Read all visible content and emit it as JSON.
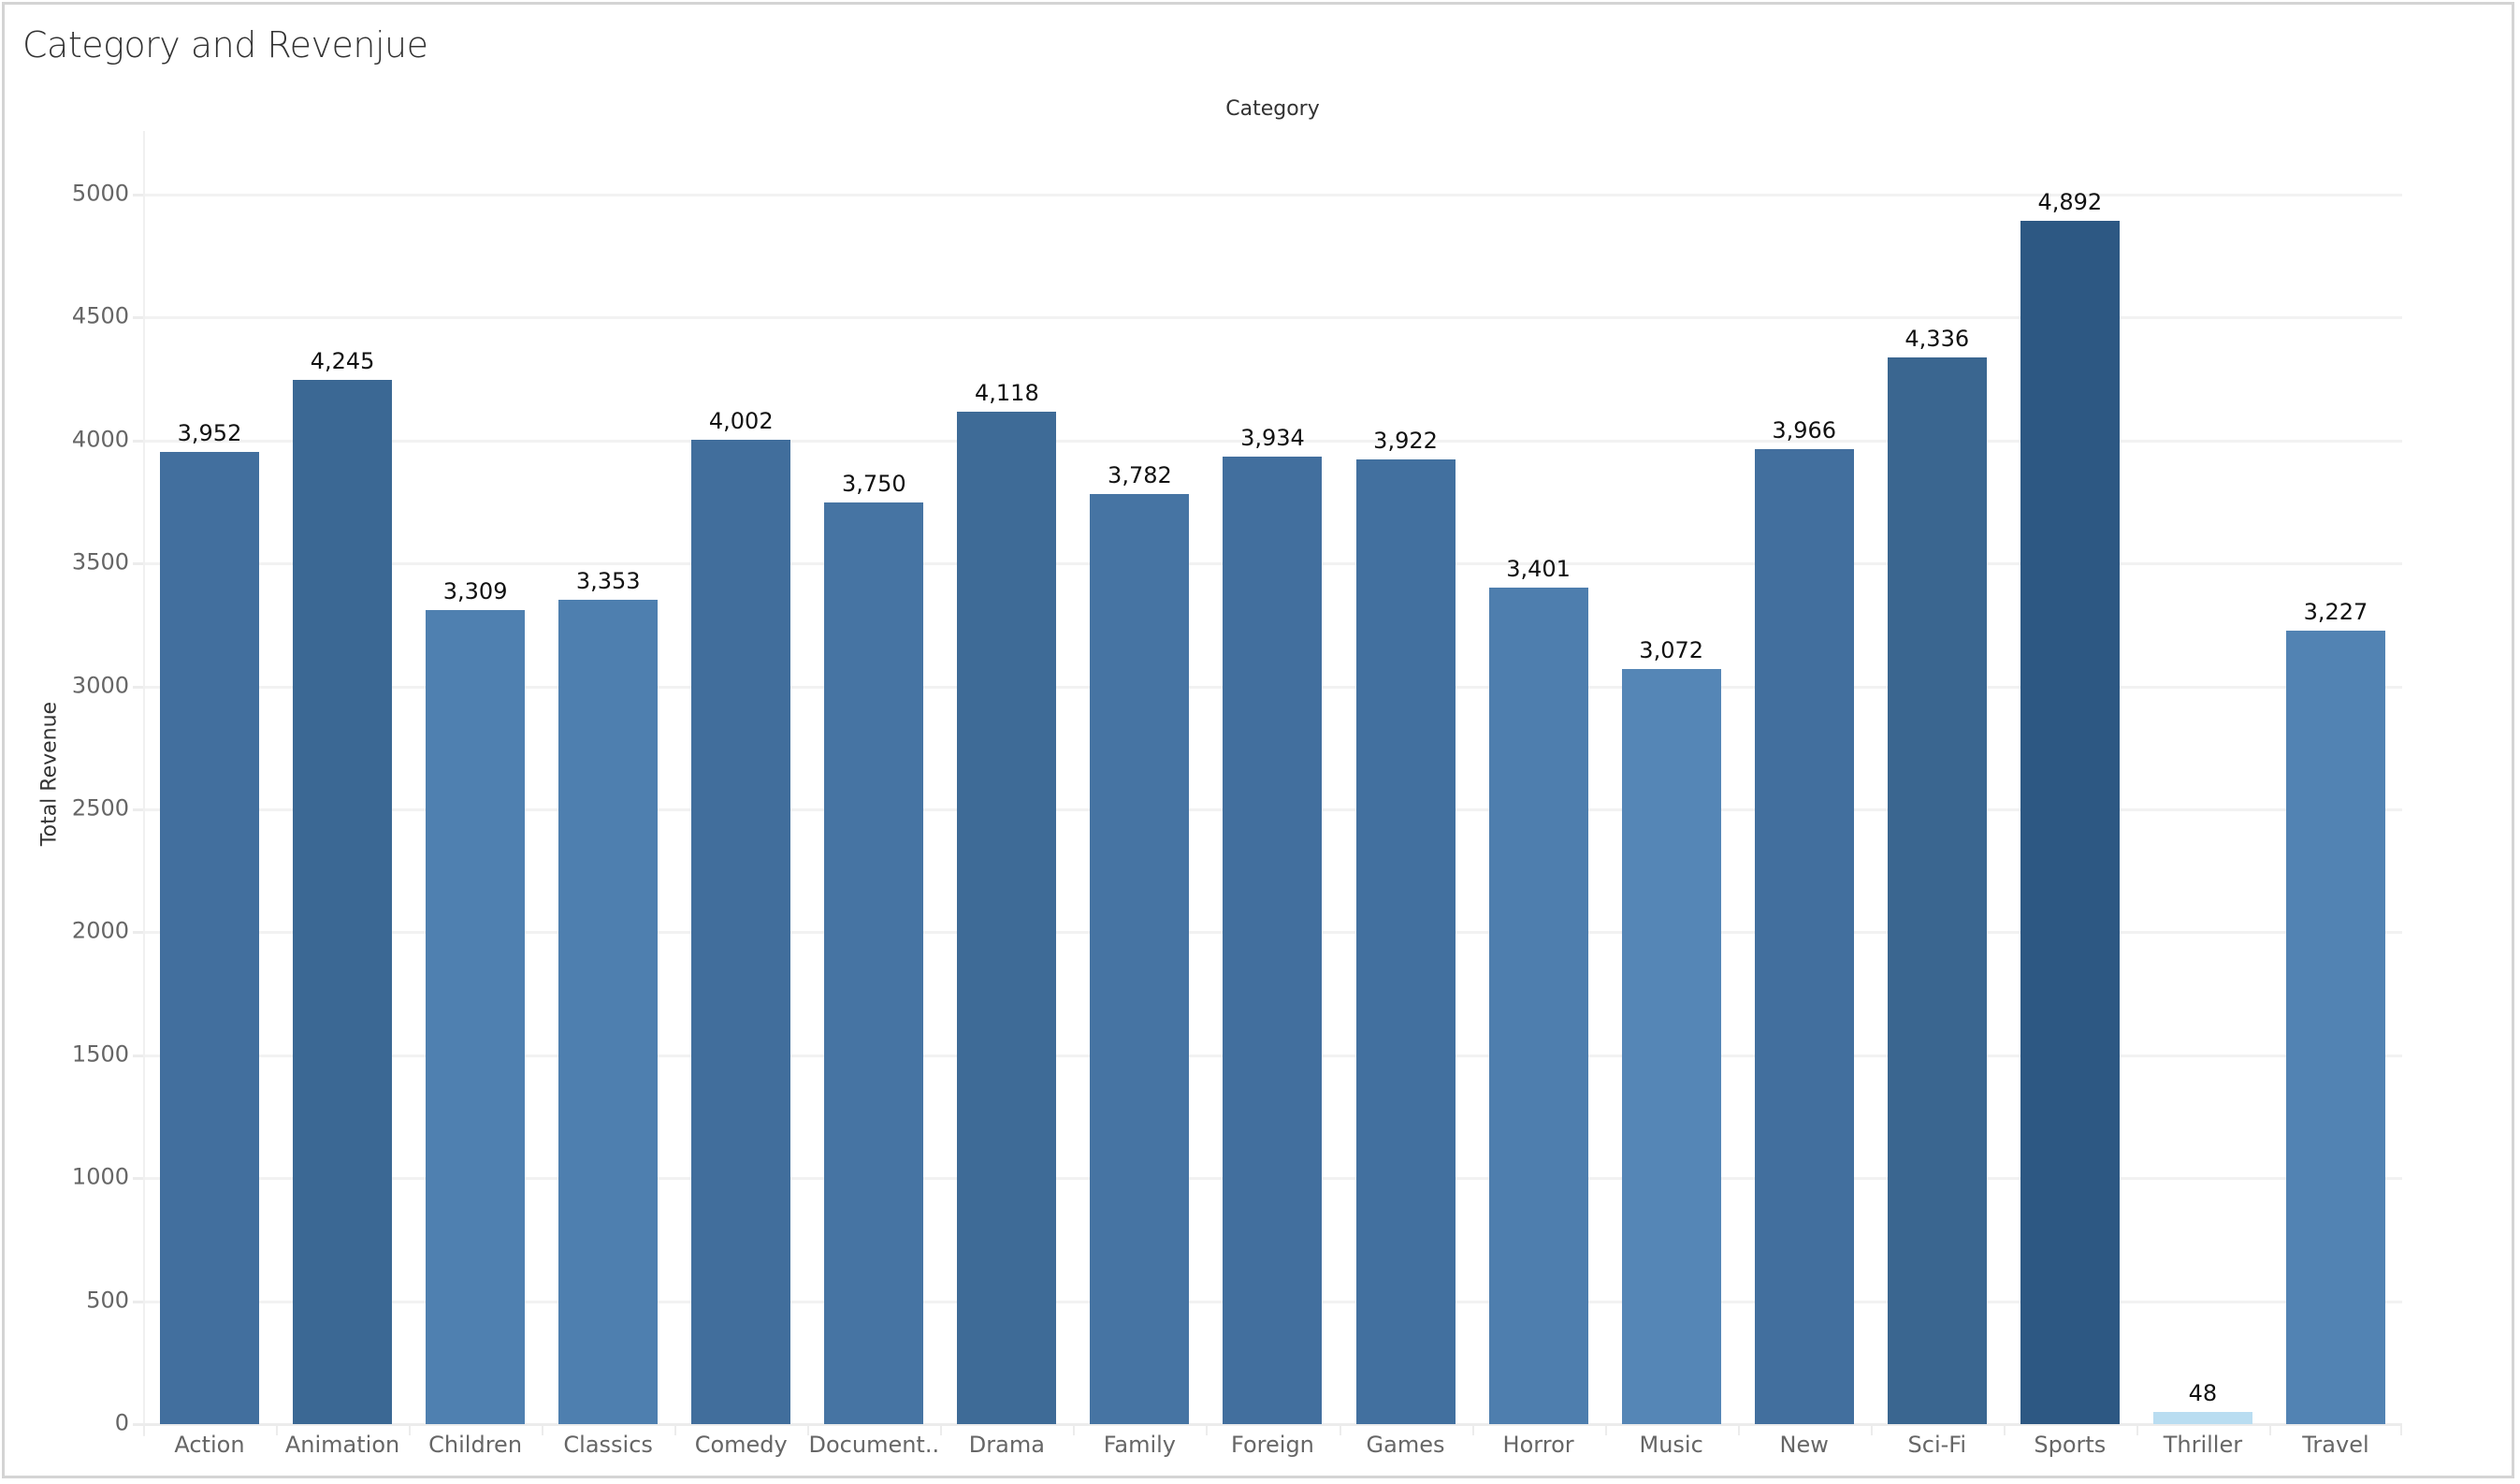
{
  "title": "Category and Revenjue",
  "column_header": "Category",
  "y_axis_title": "Total Revenue",
  "colors": {
    "frame_border": "#d4d4d4",
    "gridline": "#f2f2f2",
    "max_bar": "#2d5883",
    "min_bar": "#b9ddf1"
  },
  "y_ticks": [
    "0",
    "500",
    "1000",
    "1500",
    "2000",
    "2500",
    "3000",
    "3500",
    "4000",
    "4500",
    "5000"
  ],
  "bars": [
    {
      "category": "Action",
      "label": "Action",
      "value": 3952,
      "value_label": "3,952",
      "color": "#426f9e"
    },
    {
      "category": "Animation",
      "label": "Animation",
      "value": 4245,
      "value_label": "4,245",
      "color": "#3b6894"
    },
    {
      "category": "Children",
      "label": "Children",
      "value": 3309,
      "value_label": "3,309",
      "color": "#4f80b0"
    },
    {
      "category": "Classics",
      "label": "Classics",
      "value": 3353,
      "value_label": "3,353",
      "color": "#4e7faf"
    },
    {
      "category": "Comedy",
      "label": "Comedy",
      "value": 4002,
      "value_label": "4,002",
      "color": "#416e9c"
    },
    {
      "category": "Documentary",
      "label": "Document..",
      "value": 3750,
      "value_label": "3,750",
      "color": "#4674a3"
    },
    {
      "category": "Drama",
      "label": "Drama",
      "value": 4118,
      "value_label": "4,118",
      "color": "#3e6b97"
    },
    {
      "category": "Family",
      "label": "Family",
      "value": 3782,
      "value_label": "3,782",
      "color": "#4674a3"
    },
    {
      "category": "Foreign",
      "label": "Foreign",
      "value": 3934,
      "value_label": "3,934",
      "color": "#426f9e"
    },
    {
      "category": "Games",
      "label": "Games",
      "value": 3922,
      "value_label": "3,922",
      "color": "#42709f"
    },
    {
      "category": "Horror",
      "label": "Horror",
      "value": 3401,
      "value_label": "3,401",
      "color": "#4e7eae"
    },
    {
      "category": "Music",
      "label": "Music",
      "value": 3072,
      "value_label": "3,072",
      "color": "#5586b6"
    },
    {
      "category": "New",
      "label": "New",
      "value": 3966,
      "value_label": "3,966",
      "color": "#426f9e"
    },
    {
      "category": "Sci-Fi",
      "label": "Sci-Fi",
      "value": 4336,
      "value_label": "4,336",
      "color": "#3a6690"
    },
    {
      "category": "Sports",
      "label": "Sports",
      "value": 4892,
      "value_label": "4,892",
      "color": "#2d5883"
    },
    {
      "category": "Thriller",
      "label": "Thriller",
      "value": 48,
      "value_label": "48",
      "color": "#b9ddf1"
    },
    {
      "category": "Travel",
      "label": "Travel",
      "value": 3227,
      "value_label": "3,227",
      "color": "#5283b3"
    }
  ],
  "chart_data": {
    "type": "bar",
    "title": "Category and Revenjue",
    "xlabel": "Category",
    "ylabel": "Total Revenue",
    "categories": [
      "Action",
      "Animation",
      "Children",
      "Classics",
      "Comedy",
      "Documentary",
      "Drama",
      "Family",
      "Foreign",
      "Games",
      "Horror",
      "Music",
      "New",
      "Sci-Fi",
      "Sports",
      "Thriller",
      "Travel"
    ],
    "values": [
      3952,
      4245,
      3309,
      3353,
      4002,
      3750,
      4118,
      3782,
      3934,
      3922,
      3401,
      3072,
      3966,
      4336,
      4892,
      48,
      3227
    ],
    "ylim": [
      0,
      5200
    ],
    "y_ticks": [
      0,
      500,
      1000,
      1500,
      2000,
      2500,
      3000,
      3500,
      4000,
      4500,
      5000
    ],
    "grid": "horizontal",
    "legend": "none",
    "data_labels": true,
    "color_encoding": "sequential blue by value (darker = higher revenue)"
  }
}
